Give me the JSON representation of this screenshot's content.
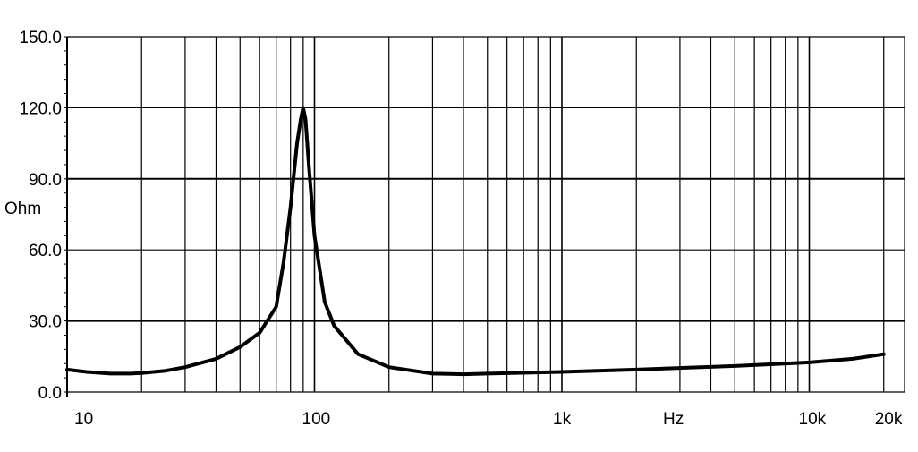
{
  "chart_data": {
    "type": "line",
    "ylabel": "Ohm",
    "xlabel": "Hz",
    "xscale": "log",
    "xlim": [
      10,
      20000
    ],
    "ylim": [
      0,
      150
    ],
    "yticks": [
      {
        "value": 0,
        "label": "0.0"
      },
      {
        "value": 30,
        "label": "30.0"
      },
      {
        "value": 60,
        "label": "60.0"
      },
      {
        "value": 90,
        "label": "90.0"
      },
      {
        "value": 120,
        "label": "120.0"
      },
      {
        "value": 150,
        "label": "150.0"
      }
    ],
    "xticks": [
      {
        "value": 10,
        "label": "10"
      },
      {
        "value": 100,
        "label": "100"
      },
      {
        "value": 1000,
        "label": "1k"
      },
      {
        "value": 10000,
        "label": "10k"
      },
      {
        "value": 20000,
        "label": "20k"
      }
    ],
    "grid": true,
    "line_color": "#000000",
    "series": [
      {
        "x": [
          10,
          12,
          15,
          18,
          20,
          25,
          30,
          40,
          50,
          60,
          70,
          75,
          80,
          85,
          88,
          90,
          92,
          95,
          100,
          110,
          120,
          150,
          200,
          300,
          400,
          500,
          1000,
          2000,
          5000,
          10000,
          15000,
          20000
        ],
        "y": [
          9.5,
          8.5,
          7.8,
          7.8,
          8.0,
          9.0,
          10.5,
          14.0,
          19.0,
          25.0,
          36.0,
          55.0,
          78.0,
          105.0,
          115.0,
          120.0,
          115.0,
          95.0,
          66.0,
          38.0,
          28.0,
          16.0,
          10.5,
          7.8,
          7.5,
          7.8,
          8.5,
          9.5,
          11.0,
          12.5,
          14.0,
          16.0
        ]
      }
    ]
  }
}
